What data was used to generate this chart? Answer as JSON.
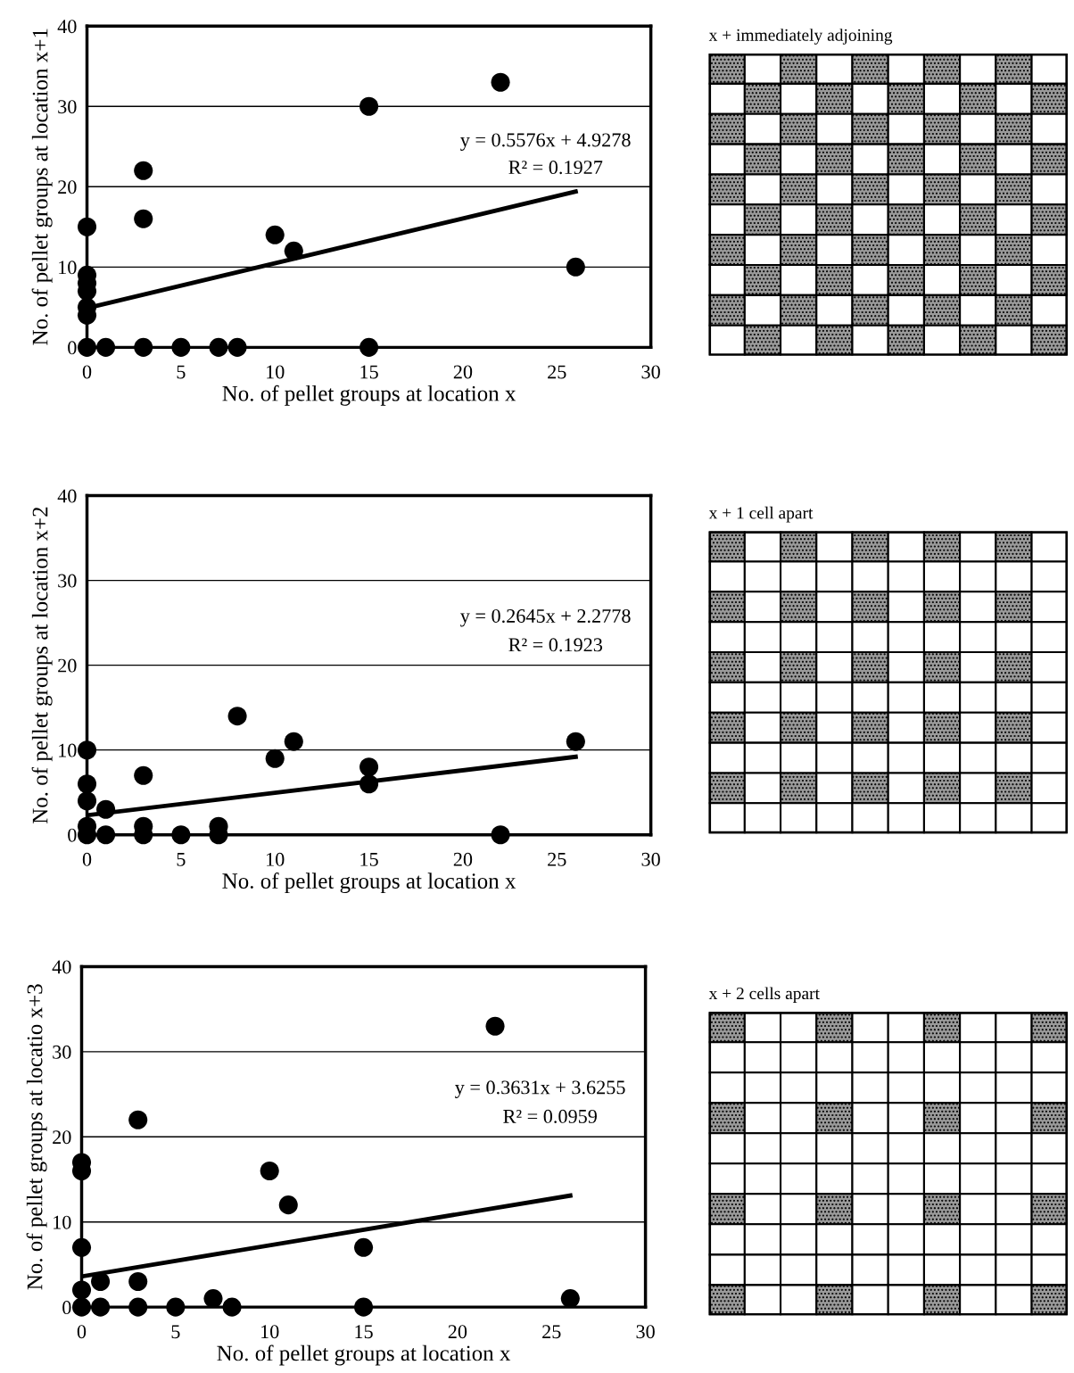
{
  "chart_data": [
    {
      "type": "scatter",
      "xlabel": "No. of pellet groups at location x",
      "ylabel": "No. of pellet groups at location x+1",
      "xlim": [
        0,
        30
      ],
      "ylim": [
        0,
        40
      ],
      "xticks": [
        0,
        5,
        10,
        15,
        20,
        25,
        30
      ],
      "yticks": [
        0,
        10,
        20,
        30,
        40
      ],
      "grid": "y",
      "annotations": [
        "y = 0.5576x + 4.9278",
        "R² = 0.1927"
      ],
      "series": [
        {
          "color": "#000000",
          "marker": "circle",
          "x": [
            0,
            0,
            0,
            0,
            0,
            0,
            0,
            1,
            3,
            3,
            3,
            5,
            7,
            8,
            10,
            11,
            15,
            15,
            22,
            26
          ],
          "values": [
            0,
            4,
            5,
            7,
            8,
            9,
            15,
            0,
            0,
            16,
            22,
            0,
            0,
            0,
            14,
            12,
            0,
            30,
            33,
            10
          ]
        },
        {
          "type": "line",
          "marker": "none",
          "color": "#000000",
          "x": [
            0,
            26
          ],
          "values": [
            4.9,
            19.4
          ]
        }
      ]
    },
    {
      "type": "other",
      "title": "x + immediately adjoining"
    },
    {
      "type": "scatter",
      "xlabel": "No. of pellet groups at location x",
      "ylabel": "No. of pellet groups at location x+2",
      "xlim": [
        0,
        30
      ],
      "ylim": [
        0,
        40
      ],
      "xticks": [
        0,
        5,
        10,
        15,
        20,
        25,
        30
      ],
      "yticks": [
        0,
        10,
        20,
        30,
        40
      ],
      "grid": "y",
      "annotations": [
        "y = 0.2645x + 2.2778",
        "R² = 0.1923"
      ],
      "series": [
        {
          "color": "#000000",
          "marker": "circle",
          "x": [
            0,
            0,
            0,
            0,
            0,
            1,
            1,
            3,
            3,
            3,
            5,
            7,
            7,
            8,
            10,
            11,
            15,
            15,
            22,
            26
          ],
          "values": [
            0,
            1,
            4,
            6,
            10,
            0,
            3,
            0,
            1,
            7,
            0,
            0,
            1,
            14,
            9,
            11,
            6,
            8,
            0,
            11
          ]
        },
        {
          "type": "line",
          "marker": "none",
          "color": "#000000",
          "x": [
            0,
            26
          ],
          "values": [
            2.3,
            9.2
          ]
        }
      ]
    },
    {
      "type": "other",
      "title": "x + 1 cell apart"
    },
    {
      "type": "scatter",
      "xlabel": "No. of pellet groups at location x",
      "ylabel": "No. of pellet groups at locatio x+3",
      "xlim": [
        0,
        30
      ],
      "ylim": [
        0,
        40
      ],
      "xticks": [
        0,
        5,
        10,
        15,
        20,
        25,
        30
      ],
      "yticks": [
        0,
        10,
        20,
        30,
        40
      ],
      "grid": "y",
      "annotations": [
        "y = 0.3631x + 3.6255",
        "R² = 0.0959"
      ],
      "series": [
        {
          "color": "#000000",
          "marker": "circle",
          "x": [
            0,
            0,
            0,
            0,
            0,
            1,
            1,
            3,
            3,
            3,
            5,
            7,
            8,
            10,
            11,
            15,
            15,
            22,
            26
          ],
          "values": [
            0,
            2,
            7,
            16,
            17,
            0,
            3,
            0,
            3,
            22,
            0,
            1,
            0,
            16,
            12,
            0,
            7,
            33,
            1
          ]
        },
        {
          "type": "line",
          "marker": "none",
          "color": "#000000",
          "x": [
            0,
            26
          ],
          "values": [
            3.6,
            13.1
          ]
        }
      ]
    },
    {
      "type": "other",
      "title": "x + 2 cells apart"
    }
  ]
}
